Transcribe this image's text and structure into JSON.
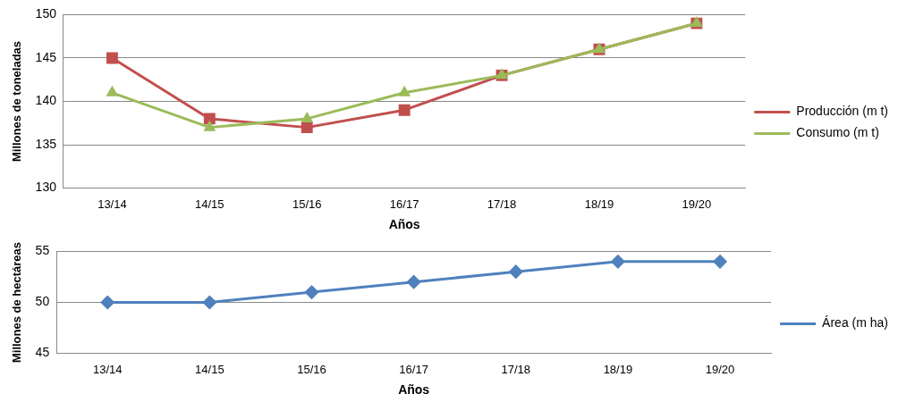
{
  "chart_data": [
    {
      "type": "line",
      "categories": [
        "13/14",
        "14/15",
        "15/16",
        "16/17",
        "17/18",
        "18/19",
        "19/20"
      ],
      "series": [
        {
          "name": "Producción (m t)",
          "color": "#c0504d",
          "marker": "square",
          "values": [
            145,
            138,
            137,
            139,
            143,
            146,
            149
          ]
        },
        {
          "name": "Consumo (m t)",
          "color": "#9bbb59",
          "marker": "triangle",
          "values": [
            141,
            137,
            138,
            141,
            143,
            146,
            149
          ]
        }
      ],
      "xlabel": "Años",
      "ylabel": "Millones de toneladas",
      "ylim": [
        130,
        150
      ],
      "yticks": [
        130,
        135,
        140,
        145,
        150
      ],
      "grid": "y",
      "legend": "right"
    },
    {
      "type": "line",
      "categories": [
        "13/14",
        "14/15",
        "15/16",
        "16/17",
        "17/18",
        "18/19",
        "19/20"
      ],
      "series": [
        {
          "name": "Área (m ha)",
          "color": "#4f81bd",
          "marker": "diamond",
          "values": [
            50,
            50,
            51,
            52,
            53,
            54,
            54
          ]
        }
      ],
      "xlabel": "Años",
      "ylabel": "Millones de hectáreas",
      "ylim": [
        45,
        55
      ],
      "yticks": [
        45,
        50,
        55
      ],
      "grid": "y",
      "legend": "right"
    }
  ]
}
